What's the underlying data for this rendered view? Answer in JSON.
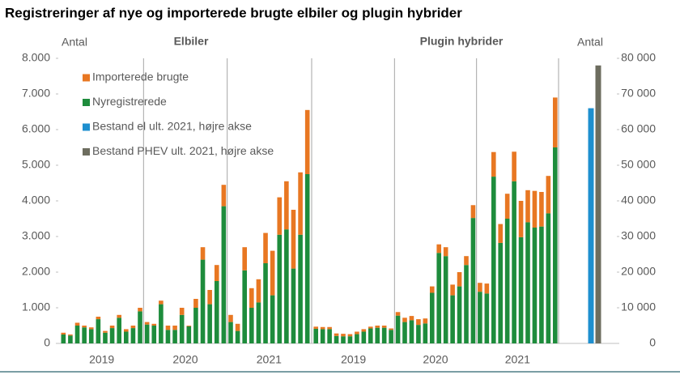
{
  "chart_data": {
    "type": "bar",
    "stacked": true,
    "title": "Registreringer af nye og importerede brugte elbiler og plugin hybrider",
    "y_label": "Antal",
    "y2_label": "Antal",
    "ylim": [
      0,
      8000
    ],
    "yticks": [
      0,
      {
        "value": 1000,
        "label": "1.000"
      },
      {
        "value": 2000,
        "label": "2.000"
      },
      {
        "value": 3000,
        "label": "3.000"
      },
      {
        "value": 4000,
        "label": "4.000"
      },
      {
        "value": 5000,
        "label": "5.000"
      },
      {
        "value": 6000,
        "label": "6.000"
      },
      {
        "value": 7000,
        "label": "7.000"
      },
      {
        "value": 8000,
        "label": "8.000"
      }
    ],
    "y2lim": [
      0,
      80000
    ],
    "y2ticks": [
      0,
      {
        "value": 10000,
        "label": "10 000"
      },
      {
        "value": 20000,
        "label": "20 000"
      },
      {
        "value": 30000,
        "label": "30 000"
      },
      {
        "value": 40000,
        "label": "40 000"
      },
      {
        "value": 50000,
        "label": "50 000"
      },
      {
        "value": 60000,
        "label": "60 000"
      },
      {
        "value": 70000,
        "label": "70 000"
      },
      {
        "value": 80000,
        "label": "80 000"
      }
    ],
    "panels": [
      {
        "title": "Elbiler",
        "years": [
          "2019",
          "2020",
          "2021"
        ]
      },
      {
        "title": "Plugin hybrider",
        "years": [
          "2019",
          "2020",
          "2021"
        ]
      }
    ],
    "series": [
      {
        "name": "Importerede brugte",
        "color": "#e87722",
        "values": [
          50,
          30,
          80,
          50,
          50,
          70,
          50,
          70,
          80,
          70,
          70,
          100,
          70,
          50,
          100,
          120,
          120,
          200,
          20,
          250,
          350,
          400,
          450,
          600,
          200,
          200,
          650,
          550,
          650,
          850,
          1250,
          1050,
          1350,
          1650,
          1750,
          1800,
          60,
          60,
          60,
          70,
          70,
          60,
          70,
          70,
          50,
          60,
          60,
          40,
          100,
          120,
          120,
          160,
          140,
          180,
          240,
          250,
          300,
          400,
          250,
          360,
          250,
          280,
          690,
          530,
          700,
          830,
          1020,
          900,
          1030,
          970,
          1050,
          1400
        ]
      },
      {
        "name": "Nyregistrerede",
        "color": "#1e8c3c",
        "values": [
          250,
          220,
          500,
          450,
          400,
          680,
          300,
          430,
          720,
          330,
          430,
          900,
          530,
          500,
          1100,
          380,
          380,
          800,
          480,
          1000,
          2350,
          1100,
          1750,
          3850,
          600,
          350,
          2050,
          1000,
          1150,
          2250,
          1350,
          3050,
          3200,
          2100,
          3050,
          4750,
          410,
          400,
          400,
          210,
          200,
          200,
          260,
          330,
          420,
          440,
          440,
          380,
          780,
          600,
          650,
          520,
          560,
          1420,
          2540,
          2450,
          1350,
          1600,
          2200,
          3520,
          1450,
          1400,
          4680,
          2820,
          3500,
          4550,
          2980,
          3400,
          3250,
          3280,
          3650,
          5500
        ]
      },
      {
        "name": "Bestand el ult. 2021, højre akse",
        "color": "#1e8fcf",
        "axis": "y2",
        "values": [
          66000
        ]
      },
      {
        "name": "Bestand PHEV ult. 2021, højre akse",
        "color": "#6d6d5f",
        "axis": "y2",
        "values": [
          78000
        ]
      }
    ]
  }
}
